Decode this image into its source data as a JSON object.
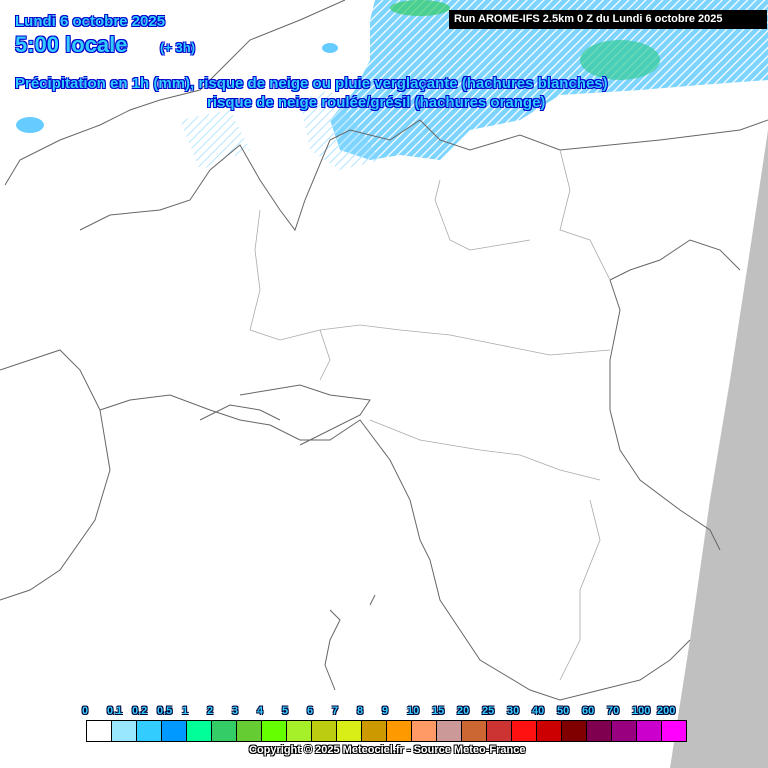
{
  "header": {
    "date": "Lundi 6 octobre 2025",
    "time": "5:00 locale",
    "offset": "(+ 3h)",
    "description_line1": "Précipitation en 1h (mm), risque de neige ou pluie verglaçante (hachures blanches)",
    "description_line2": "risque de neige roulée/grésil (hachures orange)",
    "run": "Run AROME-IFS 2.5km 0 Z du Lundi 6 octobre 2025"
  },
  "legend": {
    "unit": "mm",
    "ticks": [
      "0",
      "0.1",
      "0.2",
      "0.5",
      "1",
      "2",
      "3",
      "4",
      "5",
      "6",
      "7",
      "8",
      "9",
      "10",
      "15",
      "20",
      "25",
      "30",
      "40",
      "50",
      "60",
      "70",
      "100",
      "200"
    ],
    "colors": [
      "#ffffff",
      "#99e6ff",
      "#33ccff",
      "#0099ff",
      "#00ff99",
      "#33cc66",
      "#66cc33",
      "#66ff00",
      "#a6f02a",
      "#bbcc11",
      "#d9ee17",
      "#cc9900",
      "#ff9900",
      "#ff9966",
      "#cc9999",
      "#cc6633",
      "#cc3333",
      "#ff1111",
      "#cc0000",
      "#800000",
      "#800050",
      "#990080",
      "#cc00cc",
      "#ff00ff"
    ]
  },
  "copyright": "Copyright © 2025 Meteociel.fr - Source Meteo-France",
  "colors": {
    "title_fill": "#33ccff",
    "title_outline": "#0000cc",
    "out_of_domain": "#c0c0c0",
    "borders": "#666666"
  }
}
